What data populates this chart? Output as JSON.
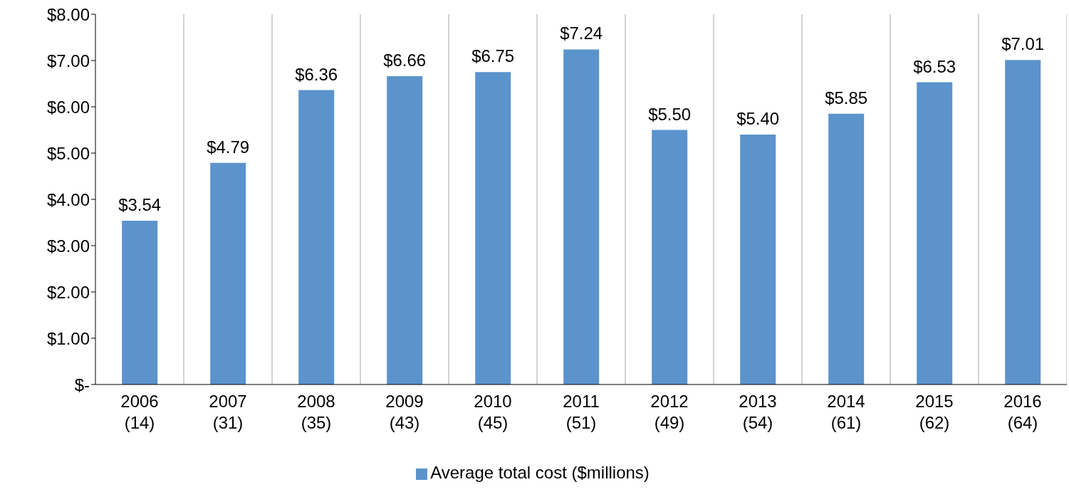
{
  "chart_data": {
    "type": "bar",
    "categories": [
      "2006\n(14)",
      "2007\n(31)",
      "2008\n(35)",
      "2009\n(43)",
      "2010\n(45)",
      "2011\n(51)",
      "2012\n(49)",
      "2013\n(54)",
      "2014\n(61)",
      "2015\n(62)",
      "2016\n(64)"
    ],
    "series": [
      {
        "name": "Average total cost ($millions)",
        "color": "#5b93cc",
        "values": [
          3.54,
          4.79,
          6.36,
          6.66,
          6.75,
          7.24,
          5.5,
          5.4,
          5.85,
          6.53,
          7.01
        ],
        "value_labels": [
          "$3.54",
          "$4.79",
          "$6.36",
          "$6.66",
          "$6.75",
          "$7.24",
          "$5.50",
          "$5.40",
          "$5.85",
          "$6.53",
          "$7.01"
        ]
      }
    ],
    "ylim": [
      0,
      8
    ],
    "yticks": [
      {
        "value": 0,
        "label": "$-"
      },
      {
        "value": 1,
        "label": "$1.00"
      },
      {
        "value": 2,
        "label": "$2.00"
      },
      {
        "value": 3,
        "label": "$3.00"
      },
      {
        "value": 4,
        "label": "$4.00"
      },
      {
        "value": 5,
        "label": "$5.00"
      },
      {
        "value": 6,
        "label": "$6.00"
      },
      {
        "value": 7,
        "label": "$7.00"
      },
      {
        "value": 8,
        "label": "$8.00"
      }
    ],
    "grid": "x",
    "legend": "bottom"
  }
}
